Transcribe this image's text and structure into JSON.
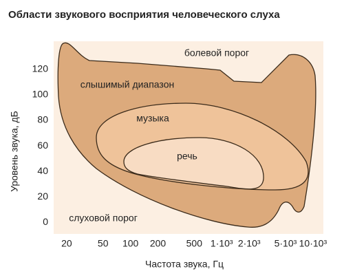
{
  "chart_data": {
    "type": "region",
    "title": "Области звукового восприятия человеческого слуха",
    "x_label": "Частота звука, Гц",
    "y_label": "Уровень звука, дБ",
    "x_scale": "log",
    "xlim": [
      14.4,
      13000
    ],
    "ylim": [
      -9,
      142
    ],
    "xticks": [
      20,
      50,
      100,
      200,
      500,
      {
        "value": 1000,
        "label": "1·10³"
      },
      {
        "value": 2000,
        "label": "2·10³"
      },
      {
        "value": 5000,
        "label": "5·10³"
      },
      {
        "value": 10000,
        "label": "10·10³"
      }
    ],
    "yticks": [
      0,
      20,
      40,
      60,
      80,
      100,
      120
    ],
    "regions": [
      "болевой порог",
      "слышимый диапазон",
      "музыка",
      "речь",
      "слуховой порог"
    ]
  }
}
